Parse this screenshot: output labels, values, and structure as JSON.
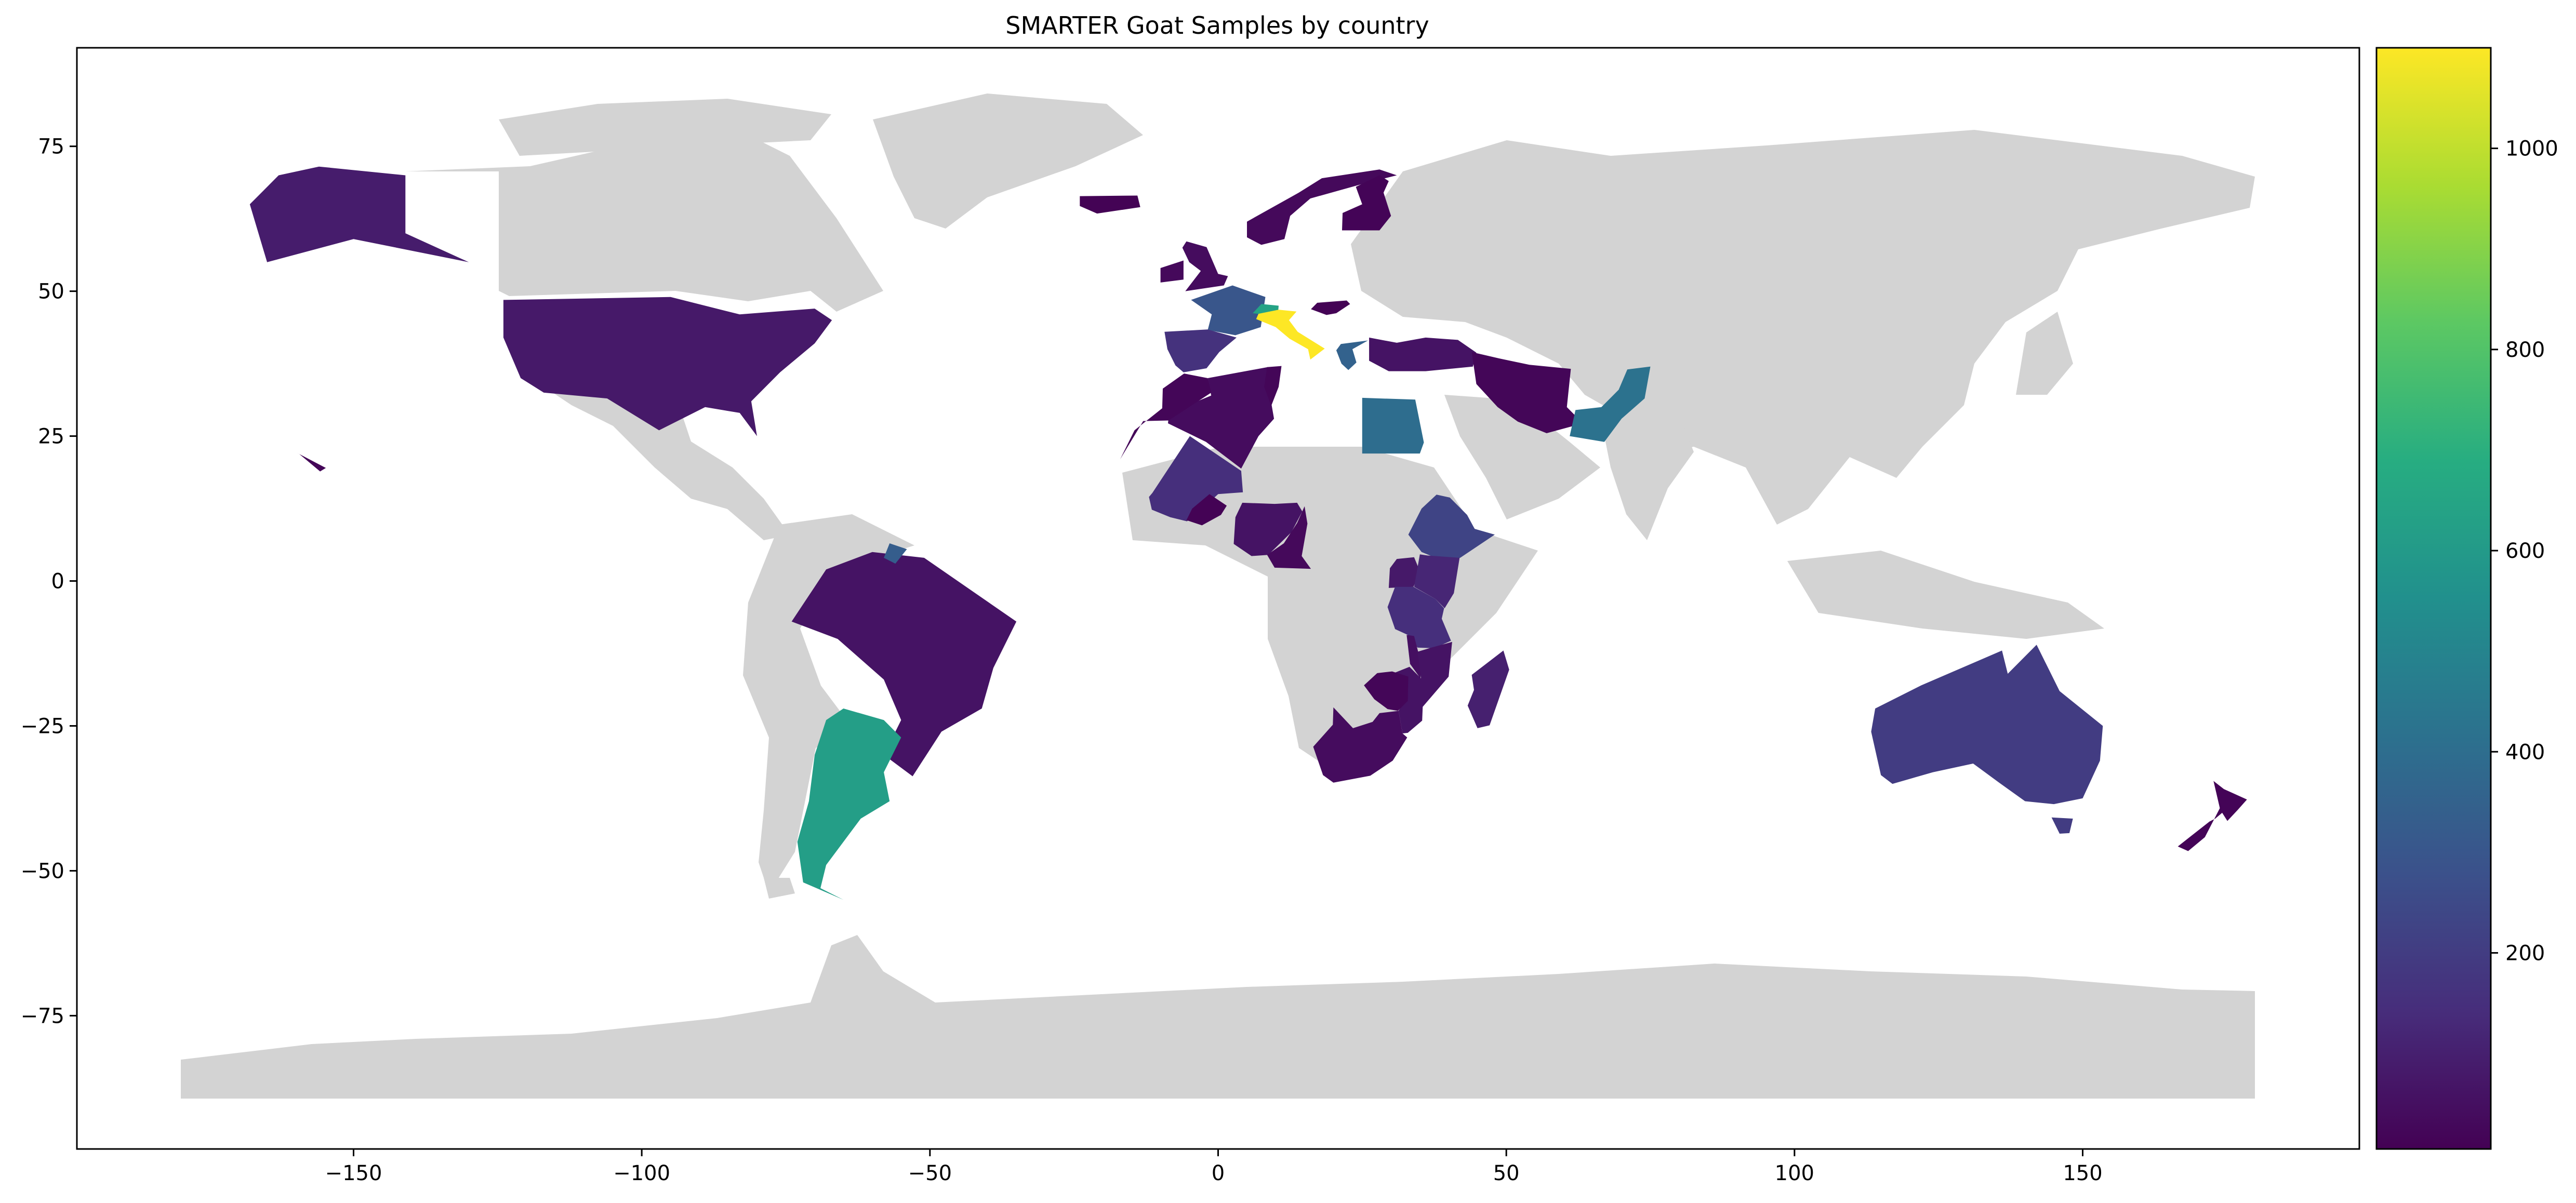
{
  "chart_data": {
    "type": "choropleth",
    "title": "SMARTER Goat Samples by country",
    "xlabel": "",
    "ylabel": "",
    "xlim": [
      -198,
      198
    ],
    "ylim": [
      -98,
      92
    ],
    "xticks": [
      -150,
      -100,
      -50,
      0,
      50,
      100,
      150
    ],
    "yticks": [
      75,
      50,
      25,
      0,
      -25,
      -50,
      -75
    ],
    "grid": false,
    "colormap": "viridis",
    "colorbar": {
      "vmin": 5,
      "vmax": 1100,
      "ticks": [
        200,
        400,
        600,
        800,
        1000
      ]
    },
    "countries": [
      {
        "name": "Italy",
        "value": 1100
      },
      {
        "name": "Argentina",
        "value": 620
      },
      {
        "name": "Switzerland",
        "value": 640
      },
      {
        "name": "Pakistan",
        "value": 420
      },
      {
        "name": "Egypt",
        "value": 400
      },
      {
        "name": "Greece",
        "value": 350
      },
      {
        "name": "Guyana",
        "value": 330
      },
      {
        "name": "France",
        "value": 300
      },
      {
        "name": "Ethiopia",
        "value": 230
      },
      {
        "name": "Australia",
        "value": 200
      },
      {
        "name": "Spain",
        "value": 160
      },
      {
        "name": "Mali",
        "value": 150
      },
      {
        "name": "Tanzania",
        "value": 150
      },
      {
        "name": "Kenya",
        "value": 120
      },
      {
        "name": "Madagascar",
        "value": 100
      },
      {
        "name": "Canada/Alaska",
        "value": 90
      },
      {
        "name": "United States",
        "value": 80
      },
      {
        "name": "Brazil",
        "value": 60
      },
      {
        "name": "Nigeria",
        "value": 60
      },
      {
        "name": "Mozambique",
        "value": 60
      },
      {
        "name": "Uganda",
        "value": 80
      },
      {
        "name": "Malawi",
        "value": 50
      },
      {
        "name": "South Africa",
        "value": 40
      },
      {
        "name": "Turkey",
        "value": 60
      },
      {
        "name": "Algeria",
        "value": 40
      },
      {
        "name": "Morocco",
        "value": 20
      },
      {
        "name": "Iran",
        "value": 20
      },
      {
        "name": "Norway",
        "value": 30
      },
      {
        "name": "Finland",
        "value": 15
      },
      {
        "name": "Iceland",
        "value": 10
      },
      {
        "name": "United Kingdom",
        "value": 40
      },
      {
        "name": "Ireland",
        "value": 30
      },
      {
        "name": "Hungary",
        "value": 10
      },
      {
        "name": "Burkina Faso",
        "value": 10
      },
      {
        "name": "Cameroon",
        "value": 30
      },
      {
        "name": "Zimbabwe",
        "value": 20
      },
      {
        "name": "Tunisia",
        "value": 20
      },
      {
        "name": "New Zealand",
        "value": 15
      },
      {
        "name": "Hawaii",
        "value": 20
      }
    ]
  }
}
